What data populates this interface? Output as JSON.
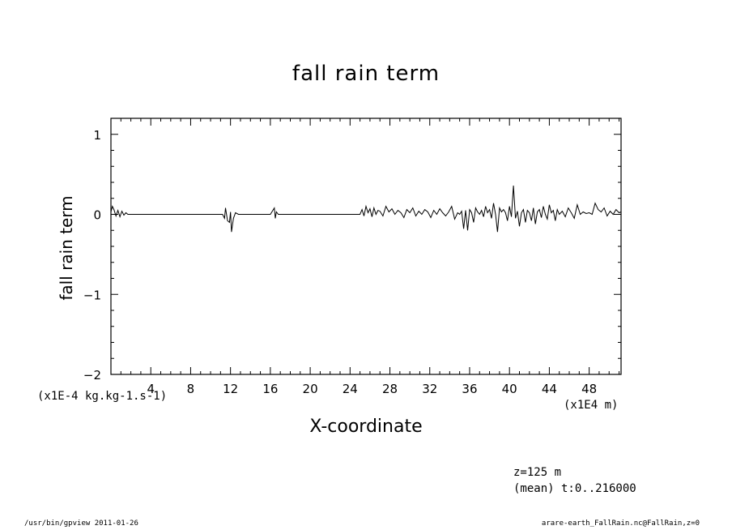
{
  "chart_data": {
    "type": "line",
    "title": "fall rain term",
    "xlabel": "X-coordinate",
    "ylabel": "fall rain term",
    "x_unit": "(x1E4 m)",
    "y_unit": "(x1E-4 kg.kg-1.s-1)",
    "xlim": [
      0,
      51.2
    ],
    "ylim": [
      -2,
      1.2
    ],
    "x_ticks": [
      4,
      8,
      12,
      16,
      20,
      24,
      28,
      32,
      36,
      40,
      44,
      48
    ],
    "x_tick_labels": [
      "4",
      "8",
      "12",
      "16",
      "20",
      "24",
      "28",
      "32",
      "36",
      "40",
      "44",
      "48"
    ],
    "y_ticks": [
      -2,
      -1,
      0,
      1
    ],
    "y_tick_labels": [
      "−2",
      "−1",
      "0",
      "1"
    ],
    "grid": false,
    "series": [
      {
        "color": "#000000",
        "x": [
          0,
          0.15,
          0.3,
          0.5,
          0.7,
          0.9,
          1.1,
          1.3,
          1.5,
          1.7,
          2.0,
          2.5,
          3,
          6,
          9,
          11.2,
          11.4,
          11.5,
          11.7,
          11.9,
          12.0,
          12.1,
          12.3,
          12.5,
          12.8,
          13,
          16,
          16.4,
          16.5,
          16.6,
          16.8,
          18,
          24,
          25,
          25.2,
          25.4,
          25.6,
          25.8,
          26.0,
          26.2,
          26.4,
          26.6,
          26.8,
          27.0,
          27.3,
          27.6,
          27.9,
          28.2,
          28.5,
          28.8,
          29.1,
          29.4,
          29.7,
          30.0,
          30.3,
          30.6,
          30.9,
          31.2,
          31.5,
          31.8,
          32.1,
          32.4,
          32.7,
          33.0,
          33.3,
          33.6,
          33.9,
          34.2,
          34.5,
          34.8,
          35.0,
          35.2,
          35.4,
          35.6,
          35.8,
          36.0,
          36.2,
          36.4,
          36.6,
          36.8,
          37.0,
          37.2,
          37.4,
          37.6,
          37.8,
          38.0,
          38.2,
          38.4,
          38.6,
          38.8,
          39.0,
          39.2,
          39.4,
          39.6,
          39.8,
          40.0,
          40.2,
          40.4,
          40.6,
          40.8,
          41.0,
          41.2,
          41.4,
          41.6,
          41.8,
          42.0,
          42.2,
          42.4,
          42.6,
          42.8,
          43.0,
          43.2,
          43.4,
          43.6,
          43.8,
          44.0,
          44.2,
          44.4,
          44.6,
          44.8,
          45.0,
          45.3,
          45.6,
          45.9,
          46.2,
          46.5,
          46.8,
          47.1,
          47.4,
          47.7,
          48.0,
          48.3,
          48.6,
          48.9,
          49.2,
          49.5,
          49.8,
          50.1,
          50.4,
          50.7,
          51.0,
          51.2
        ],
        "y": [
          0.03,
          0.1,
          0.06,
          -0.02,
          0.05,
          -0.03,
          0.04,
          -0.01,
          0.02,
          0.0,
          0.0,
          0.0,
          0.0,
          0.0,
          0.0,
          0.0,
          -0.05,
          0.08,
          -0.08,
          -0.1,
          0.03,
          -0.22,
          -0.05,
          0.02,
          0.0,
          0.0,
          0.0,
          0.08,
          -0.05,
          0.03,
          0.0,
          0.0,
          0.0,
          0.0,
          0.06,
          -0.02,
          0.1,
          0.02,
          0.07,
          -0.03,
          0.08,
          0.0,
          0.05,
          0.04,
          -0.02,
          0.1,
          0.03,
          0.07,
          0.0,
          0.05,
          0.02,
          -0.04,
          0.06,
          0.02,
          0.08,
          -0.02,
          0.04,
          0.0,
          0.06,
          0.03,
          -0.04,
          0.05,
          0.0,
          0.07,
          0.02,
          -0.02,
          0.03,
          0.1,
          -0.06,
          0.02,
          0.0,
          0.04,
          -0.18,
          0.05,
          -0.2,
          0.06,
          0.02,
          -0.1,
          0.08,
          0.03,
          0.0,
          0.05,
          -0.03,
          0.1,
          0.02,
          0.06,
          -0.05,
          0.14,
          0.0,
          -0.22,
          0.08,
          0.03,
          0.06,
          0.02,
          -0.08,
          0.1,
          -0.03,
          0.36,
          -0.05,
          0.04,
          -0.15,
          0.02,
          0.06,
          -0.1,
          0.05,
          0.02,
          -0.08,
          0.08,
          -0.12,
          0.03,
          0.06,
          -0.04,
          0.1,
          0.0,
          -0.06,
          0.12,
          0.02,
          0.05,
          -0.08,
          0.06,
          0.0,
          0.04,
          -0.03,
          0.08,
          0.02,
          -0.05,
          0.12,
          0.0,
          0.03,
          0.01,
          0.02,
          0.0,
          0.14,
          0.06,
          0.03,
          0.08,
          -0.02,
          0.04,
          0.0,
          0.06,
          0.02,
          0.03
        ]
      }
    ]
  },
  "annotations": {
    "meta_line1": "z=125 m",
    "meta_line2": "(mean) t:0..216000",
    "footer_left": "/usr/bin/gpview   2011-01-26",
    "footer_right": "arare-earth_FallRain.nc@FallRain,z=0"
  }
}
